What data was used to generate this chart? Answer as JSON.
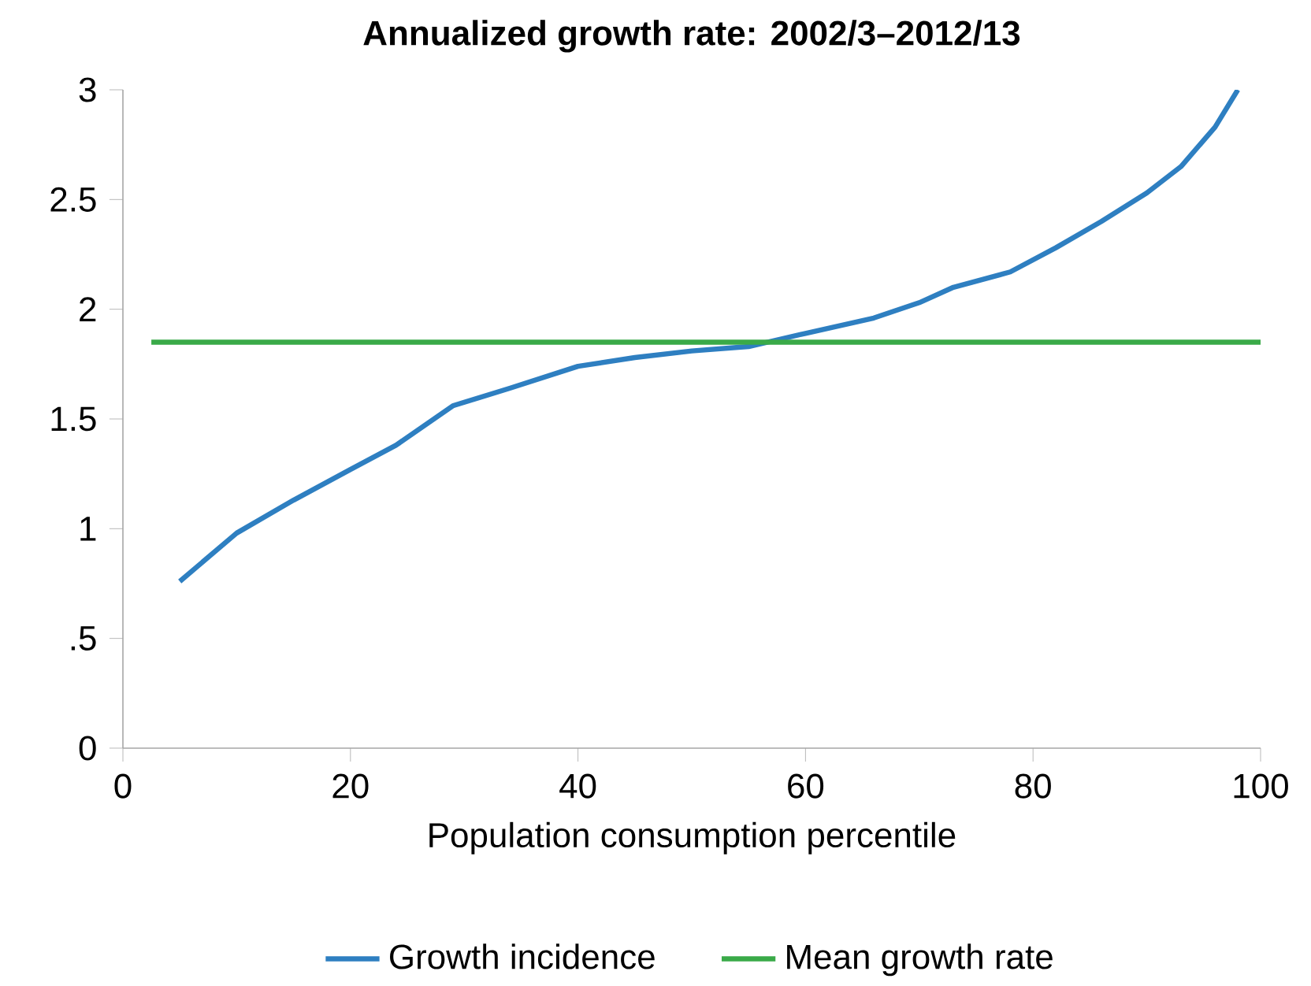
{
  "chart_data": {
    "type": "line",
    "title": "Annualized growth rate: 2002/3–2012/13",
    "xlabel": "Population consumption percentile",
    "series": [
      {
        "name": "Growth incidence",
        "color": "#2e7fc1",
        "x": [
          5,
          10,
          15,
          20,
          24,
          29,
          34,
          40,
          45,
          50,
          55,
          60,
          66,
          70,
          73,
          78,
          82,
          86,
          90,
          93,
          96,
          98
        ],
        "values": [
          0.76,
          0.98,
          1.13,
          1.27,
          1.38,
          1.56,
          1.64,
          1.74,
          1.78,
          1.81,
          1.83,
          1.89,
          1.96,
          2.03,
          2.1,
          2.17,
          2.28,
          2.4,
          2.53,
          2.65,
          2.83,
          3.0
        ]
      },
      {
        "name": "Mean growth rate",
        "color": "#3aaa48",
        "x": [
          2.5,
          100
        ],
        "values": [
          1.85,
          1.85
        ]
      }
    ],
    "xlim": [
      0,
      100
    ],
    "ylim": [
      0,
      3
    ],
    "xticks": [
      0,
      20,
      40,
      60,
      80,
      100
    ],
    "yticks": [
      0,
      {
        "value": 0.5,
        "label": ".5"
      },
      1,
      1.5,
      2,
      2.5,
      3
    ],
    "legend": "bottom",
    "marker": "none",
    "line_style": "solid"
  }
}
